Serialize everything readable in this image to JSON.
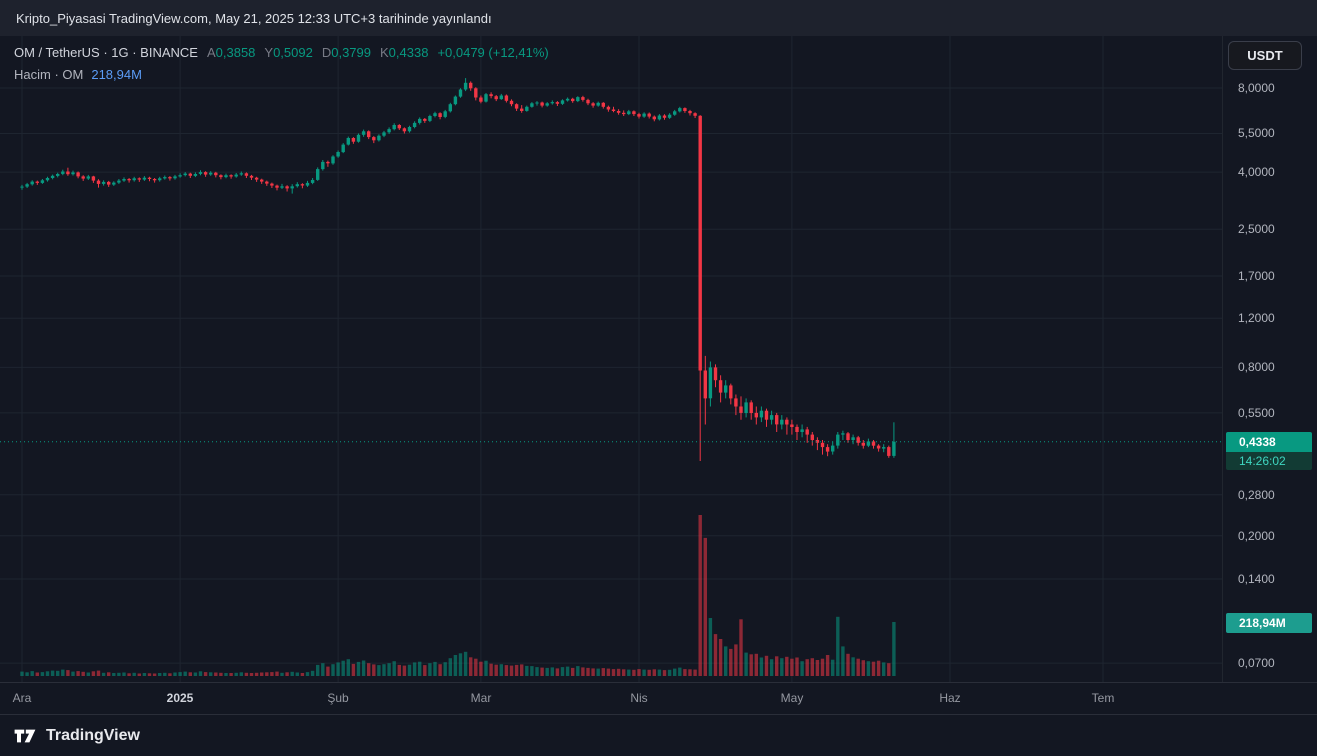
{
  "colors": {
    "background": "#131722",
    "panel": "#1e222d",
    "grid": "#1e2530",
    "up": "#089981",
    "down": "#f23645",
    "text_primary": "#d1d4dc",
    "text_secondary": "#b2b5be",
    "volume_legend_value": "#5b9cf6",
    "price_badge_bg": "#089981",
    "volume_badge_bg": "#1d9d8f"
  },
  "top_bar": {
    "published_text": "Kripto_Piyasasi TradingView.com, May 21, 2025 12:33 UTC+3 tarihinde yayınlandı"
  },
  "legend": {
    "symbol_line": "OM / TetherUS · 1G · BINANCE",
    "ohlc": {
      "open_label": "A",
      "open": "0,3858",
      "high_label": "Y",
      "high": "0,5092",
      "low_label": "D",
      "low": "0,3799",
      "close_label": "K",
      "close": "0,4338"
    },
    "change": "+0,0479 (+12,41%)",
    "volume_title": "Hacim · OM",
    "volume_value": "218,94M"
  },
  "price_scale": {
    "currency_button": "USDT",
    "ticks": [
      {
        "label": "8,0000",
        "value": 8.0
      },
      {
        "label": "5,5000",
        "value": 5.5
      },
      {
        "label": "4,0000",
        "value": 4.0
      },
      {
        "label": "2,5000",
        "value": 2.5
      },
      {
        "label": "1,7000",
        "value": 1.7
      },
      {
        "label": "1,2000",
        "value": 1.2
      },
      {
        "label": "0,8000",
        "value": 0.8
      },
      {
        "label": "0,5500",
        "value": 0.55
      },
      {
        "label": "0,2800",
        "value": 0.28
      },
      {
        "label": "0,2000",
        "value": 0.2
      },
      {
        "label": "0,1400",
        "value": 0.14
      },
      {
        "label": "0,0700",
        "value": 0.07
      }
    ],
    "last_price_label": "0,4338",
    "last_price_value": 0.4338,
    "countdown": "14:26:02",
    "volume_badge": "218,94M",
    "volume_badge_value_m": 218.94
  },
  "time_scale": {
    "labels": [
      {
        "text": "Ara",
        "day": 0
      },
      {
        "text": "2025",
        "day": 31,
        "emphasis": true
      },
      {
        "text": "Şub",
        "day": 62
      },
      {
        "text": "Mar",
        "day": 90
      },
      {
        "text": "Nis",
        "day": 121
      },
      {
        "text": "May",
        "day": 151
      },
      {
        "text": "Haz",
        "day": 182
      },
      {
        "text": "Tem",
        "day": 212
      }
    ]
  },
  "footer": {
    "brand": "TradingView"
  },
  "chart_data": {
    "type": "candlestick",
    "subchart": "volume",
    "title": "OM / TetherUS · 1G · BINANCE",
    "symbol": "OM / TetherUS",
    "exchange": "BINANCE",
    "interval": "1G",
    "quote_currency": "USDT",
    "price_scale_type": "log",
    "price_axis_ticks": [
      8.0,
      5.5,
      4.0,
      2.5,
      1.7,
      1.2,
      0.8,
      0.55,
      0.28,
      0.2,
      0.14,
      0.07
    ],
    "x_axis_months": [
      "Ara",
      "2025",
      "Şub",
      "Mar",
      "Nis",
      "May",
      "Haz",
      "Tem"
    ],
    "start_date": "2024-12-01",
    "candle_interval_days": 1,
    "candle_format": [
      "open",
      "high",
      "low",
      "close",
      "volume_millions"
    ],
    "last": {
      "open": 0.3858,
      "high": 0.5092,
      "low": 0.3799,
      "close": 0.4338,
      "change": 0.0479,
      "change_pct": 12.41,
      "volume_m": 218.94
    },
    "candles": [
      [
        3.52,
        3.6,
        3.46,
        3.55,
        18
      ],
      [
        3.55,
        3.66,
        3.51,
        3.62,
        15
      ],
      [
        3.62,
        3.74,
        3.58,
        3.7,
        20
      ],
      [
        3.7,
        3.73,
        3.6,
        3.66,
        14
      ],
      [
        3.66,
        3.78,
        3.63,
        3.74,
        16
      ],
      [
        3.74,
        3.85,
        3.7,
        3.81,
        19
      ],
      [
        3.81,
        3.92,
        3.77,
        3.88,
        22
      ],
      [
        3.88,
        3.98,
        3.83,
        3.94,
        21
      ],
      [
        3.94,
        4.08,
        3.9,
        4.02,
        26
      ],
      [
        4.02,
        4.15,
        3.88,
        3.93,
        24
      ],
      [
        3.93,
        4.05,
        3.89,
        3.99,
        18
      ],
      [
        3.99,
        4.02,
        3.8,
        3.86,
        20
      ],
      [
        3.86,
        3.9,
        3.72,
        3.79,
        17
      ],
      [
        3.79,
        3.91,
        3.75,
        3.86,
        14
      ],
      [
        3.86,
        3.88,
        3.66,
        3.73,
        19
      ],
      [
        3.73,
        3.77,
        3.52,
        3.63,
        22
      ],
      [
        3.63,
        3.74,
        3.58,
        3.69,
        13
      ],
      [
        3.69,
        3.72,
        3.54,
        3.61,
        15
      ],
      [
        3.61,
        3.71,
        3.57,
        3.67,
        12
      ],
      [
        3.67,
        3.78,
        3.63,
        3.73,
        13
      ],
      [
        3.73,
        3.83,
        3.69,
        3.78,
        14
      ],
      [
        3.78,
        3.81,
        3.67,
        3.74,
        11
      ],
      [
        3.74,
        3.85,
        3.7,
        3.8,
        13
      ],
      [
        3.8,
        3.83,
        3.69,
        3.76,
        10
      ],
      [
        3.76,
        3.87,
        3.72,
        3.82,
        12
      ],
      [
        3.82,
        3.85,
        3.71,
        3.78,
        11
      ],
      [
        3.78,
        3.81,
        3.67,
        3.74,
        10
      ],
      [
        3.74,
        3.85,
        3.7,
        3.8,
        12
      ],
      [
        3.8,
        3.89,
        3.76,
        3.84,
        13
      ],
      [
        3.84,
        3.87,
        3.73,
        3.8,
        11
      ],
      [
        3.8,
        3.91,
        3.76,
        3.86,
        14
      ],
      [
        3.86,
        3.96,
        3.82,
        3.9,
        16
      ],
      [
        3.9,
        4.0,
        3.86,
        3.95,
        18
      ],
      [
        3.95,
        3.98,
        3.81,
        3.88,
        15
      ],
      [
        3.88,
        3.99,
        3.84,
        3.94,
        14
      ],
      [
        3.94,
        4.06,
        3.9,
        4.0,
        19
      ],
      [
        4.0,
        4.03,
        3.85,
        3.92,
        16
      ],
      [
        3.92,
        4.03,
        3.88,
        3.98,
        15
      ],
      [
        3.98,
        4.01,
        3.83,
        3.9,
        14
      ],
      [
        3.9,
        3.93,
        3.77,
        3.84,
        13
      ],
      [
        3.84,
        3.95,
        3.8,
        3.9,
        12
      ],
      [
        3.9,
        3.93,
        3.79,
        3.86,
        12
      ],
      [
        3.86,
        3.97,
        3.82,
        3.92,
        13
      ],
      [
        3.92,
        4.02,
        3.88,
        3.96,
        15
      ],
      [
        3.96,
        3.99,
        3.81,
        3.88,
        13
      ],
      [
        3.88,
        3.91,
        3.75,
        3.82,
        12
      ],
      [
        3.82,
        3.85,
        3.69,
        3.76,
        13
      ],
      [
        3.76,
        3.79,
        3.63,
        3.7,
        14
      ],
      [
        3.7,
        3.73,
        3.57,
        3.64,
        15
      ],
      [
        3.64,
        3.67,
        3.51,
        3.58,
        16
      ],
      [
        3.58,
        3.61,
        3.44,
        3.52,
        18
      ],
      [
        3.52,
        3.63,
        3.48,
        3.56,
        13
      ],
      [
        3.56,
        3.59,
        3.41,
        3.5,
        15
      ],
      [
        3.5,
        3.62,
        3.35,
        3.56,
        17
      ],
      [
        3.56,
        3.68,
        3.52,
        3.62,
        14
      ],
      [
        3.62,
        3.65,
        3.5,
        3.58,
        12
      ],
      [
        3.58,
        3.72,
        3.54,
        3.66,
        16
      ],
      [
        3.66,
        3.81,
        3.62,
        3.75,
        21
      ],
      [
        3.75,
        4.16,
        3.72,
        4.1,
        45
      ],
      [
        4.1,
        4.42,
        4.05,
        4.35,
        52
      ],
      [
        4.35,
        4.4,
        4.18,
        4.3,
        38
      ],
      [
        4.3,
        4.6,
        4.25,
        4.55,
        48
      ],
      [
        4.55,
        4.78,
        4.5,
        4.72,
        55
      ],
      [
        4.72,
        5.08,
        4.68,
        5.02,
        62
      ],
      [
        5.02,
        5.36,
        4.98,
        5.3,
        68
      ],
      [
        5.3,
        5.34,
        5.05,
        5.14,
        49
      ],
      [
        5.14,
        5.5,
        5.1,
        5.44,
        57
      ],
      [
        5.44,
        5.68,
        5.35,
        5.6,
        63
      ],
      [
        5.6,
        5.64,
        5.25,
        5.34,
        52
      ],
      [
        5.34,
        5.38,
        5.08,
        5.2,
        47
      ],
      [
        5.2,
        5.46,
        5.15,
        5.4,
        44
      ],
      [
        5.4,
        5.62,
        5.34,
        5.55,
        48
      ],
      [
        5.55,
        5.78,
        5.48,
        5.7,
        52
      ],
      [
        5.7,
        5.98,
        5.64,
        5.9,
        60
      ],
      [
        5.9,
        5.94,
        5.66,
        5.74,
        45
      ],
      [
        5.74,
        5.78,
        5.5,
        5.6,
        42
      ],
      [
        5.6,
        5.86,
        5.54,
        5.8,
        46
      ],
      [
        5.8,
        6.08,
        5.74,
        6.0,
        55
      ],
      [
        6.0,
        6.28,
        5.92,
        6.2,
        58
      ],
      [
        6.2,
        6.25,
        6.0,
        6.1,
        44
      ],
      [
        6.1,
        6.42,
        6.04,
        6.35,
        52
      ],
      [
        6.35,
        6.58,
        6.28,
        6.5,
        57
      ],
      [
        6.5,
        6.55,
        6.18,
        6.3,
        48
      ],
      [
        6.3,
        6.68,
        6.24,
        6.6,
        56
      ],
      [
        6.6,
        7.08,
        6.54,
        7.0,
        72
      ],
      [
        7.0,
        7.52,
        6.94,
        7.45,
        85
      ],
      [
        7.45,
        7.98,
        7.38,
        7.9,
        92
      ],
      [
        7.9,
        8.68,
        7.8,
        8.35,
        98
      ],
      [
        8.35,
        8.45,
        7.82,
        7.98,
        76
      ],
      [
        7.98,
        8.05,
        7.22,
        7.4,
        70
      ],
      [
        7.4,
        7.52,
        7.05,
        7.15,
        58
      ],
      [
        7.15,
        7.68,
        7.1,
        7.6,
        62
      ],
      [
        7.6,
        7.72,
        7.35,
        7.48,
        50
      ],
      [
        7.48,
        7.55,
        7.18,
        7.3,
        46
      ],
      [
        7.3,
        7.62,
        7.25,
        7.52,
        48
      ],
      [
        7.52,
        7.58,
        7.1,
        7.2,
        44
      ],
      [
        7.2,
        7.28,
        6.88,
        7.0,
        42
      ],
      [
        7.0,
        7.05,
        6.62,
        6.75,
        45
      ],
      [
        6.75,
        6.95,
        6.52,
        6.62,
        47
      ],
      [
        6.62,
        6.92,
        6.58,
        6.85,
        41
      ],
      [
        6.85,
        7.12,
        6.8,
        7.05,
        40
      ],
      [
        7.05,
        7.18,
        6.92,
        7.1,
        36
      ],
      [
        7.1,
        7.15,
        6.82,
        6.92,
        34
      ],
      [
        6.92,
        7.12,
        6.86,
        7.05,
        33
      ],
      [
        7.05,
        7.22,
        6.98,
        7.12,
        35
      ],
      [
        7.12,
        7.18,
        6.9,
        7.02,
        31
      ],
      [
        7.02,
        7.28,
        6.96,
        7.22,
        36
      ],
      [
        7.22,
        7.4,
        7.15,
        7.32,
        38
      ],
      [
        7.32,
        7.38,
        7.08,
        7.18,
        33
      ],
      [
        7.18,
        7.48,
        7.12,
        7.42,
        40
      ],
      [
        7.42,
        7.5,
        7.15,
        7.25,
        35
      ],
      [
        7.25,
        7.32,
        6.95,
        7.05,
        33
      ],
      [
        7.05,
        7.12,
        6.8,
        6.92,
        31
      ],
      [
        6.92,
        7.15,
        6.86,
        7.08,
        30
      ],
      [
        7.08,
        7.12,
        6.75,
        6.85,
        32
      ],
      [
        6.85,
        6.92,
        6.58,
        6.7,
        30
      ],
      [
        6.7,
        6.85,
        6.55,
        6.62,
        28
      ],
      [
        6.62,
        6.72,
        6.42,
        6.52,
        29
      ],
      [
        6.52,
        6.65,
        6.35,
        6.45,
        27
      ],
      [
        6.45,
        6.68,
        6.4,
        6.6,
        26
      ],
      [
        6.6,
        6.65,
        6.35,
        6.45,
        25
      ],
      [
        6.45,
        6.52,
        6.22,
        6.32,
        28
      ],
      [
        6.32,
        6.55,
        6.26,
        6.48,
        26
      ],
      [
        6.48,
        6.54,
        6.22,
        6.32,
        25
      ],
      [
        6.32,
        6.38,
        6.08,
        6.18,
        27
      ],
      [
        6.18,
        6.45,
        6.12,
        6.38,
        26
      ],
      [
        6.38,
        6.44,
        6.16,
        6.26,
        24
      ],
      [
        6.26,
        6.5,
        6.2,
        6.42,
        25
      ],
      [
        6.42,
        6.68,
        6.36,
        6.6,
        30
      ],
      [
        6.6,
        6.85,
        6.54,
        6.78,
        34
      ],
      [
        6.78,
        6.82,
        6.52,
        6.62,
        28
      ],
      [
        6.62,
        6.68,
        6.38,
        6.5,
        27
      ],
      [
        6.5,
        6.55,
        6.25,
        6.36,
        26
      ],
      [
        6.36,
        6.4,
        0.37,
        0.78,
        653
      ],
      [
        0.78,
        0.88,
        0.5,
        0.62,
        560
      ],
      [
        0.62,
        0.84,
        0.58,
        0.8,
        235
      ],
      [
        0.8,
        0.82,
        0.68,
        0.72,
        170
      ],
      [
        0.72,
        0.75,
        0.6,
        0.65,
        150
      ],
      [
        0.65,
        0.72,
        0.62,
        0.69,
        120
      ],
      [
        0.69,
        0.7,
        0.59,
        0.62,
        110
      ],
      [
        0.62,
        0.64,
        0.54,
        0.58,
        128
      ],
      [
        0.58,
        0.63,
        0.52,
        0.55,
        230
      ],
      [
        0.55,
        0.62,
        0.53,
        0.6,
        95
      ],
      [
        0.6,
        0.61,
        0.52,
        0.55,
        88
      ],
      [
        0.55,
        0.58,
        0.5,
        0.53,
        90
      ],
      [
        0.53,
        0.58,
        0.51,
        0.56,
        75
      ],
      [
        0.56,
        0.57,
        0.49,
        0.52,
        82
      ],
      [
        0.52,
        0.56,
        0.5,
        0.54,
        68
      ],
      [
        0.54,
        0.55,
        0.47,
        0.5,
        80
      ],
      [
        0.5,
        0.54,
        0.48,
        0.52,
        72
      ],
      [
        0.52,
        0.53,
        0.46,
        0.5,
        78
      ],
      [
        0.5,
        0.52,
        0.46,
        0.49,
        70
      ],
      [
        0.49,
        0.5,
        0.44,
        0.47,
        75
      ],
      [
        0.47,
        0.5,
        0.45,
        0.48,
        60
      ],
      [
        0.48,
        0.49,
        0.43,
        0.46,
        68
      ],
      [
        0.46,
        0.47,
        0.42,
        0.44,
        72
      ],
      [
        0.44,
        0.45,
        0.405,
        0.43,
        65
      ],
      [
        0.43,
        0.44,
        0.39,
        0.415,
        70
      ],
      [
        0.415,
        0.425,
        0.385,
        0.4,
        85
      ],
      [
        0.4,
        0.435,
        0.39,
        0.42,
        66
      ],
      [
        0.42,
        0.47,
        0.41,
        0.46,
        240
      ],
      [
        0.46,
        0.475,
        0.44,
        0.465,
        120
      ],
      [
        0.465,
        0.47,
        0.43,
        0.44,
        90
      ],
      [
        0.44,
        0.46,
        0.425,
        0.45,
        76
      ],
      [
        0.45,
        0.455,
        0.42,
        0.43,
        70
      ],
      [
        0.43,
        0.44,
        0.41,
        0.42,
        64
      ],
      [
        0.42,
        0.445,
        0.415,
        0.435,
        60
      ],
      [
        0.435,
        0.44,
        0.41,
        0.42,
        58
      ],
      [
        0.42,
        0.425,
        0.4,
        0.41,
        62
      ],
      [
        0.41,
        0.425,
        0.398,
        0.415,
        55
      ],
      [
        0.415,
        0.42,
        0.38,
        0.386,
        52
      ],
      [
        0.3858,
        0.5092,
        0.3799,
        0.4338,
        218.94
      ]
    ]
  }
}
